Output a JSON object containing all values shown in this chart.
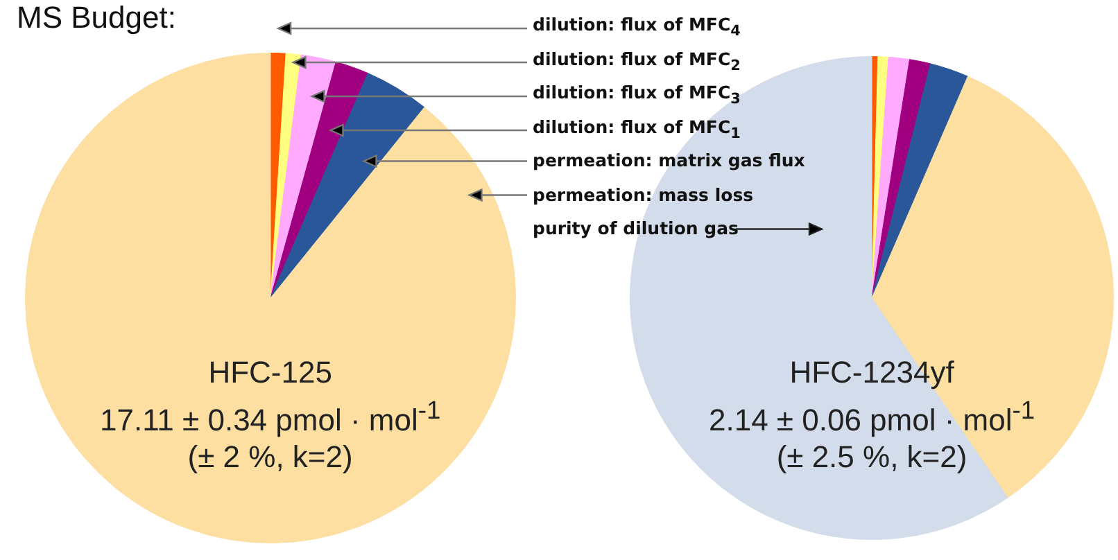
{
  "chart_data": [
    {
      "type": "pie",
      "title": "MS Budget:",
      "categories": [
        "dilution: flux of MFC$_{4}$",
        "dilution: flux of MFC$_{2}$",
        "dilution: flux of MFC$_{3}$",
        "dilution: flux of MFC$_{1}$",
        "permeation: matrix gas flux",
        "permeation: mass loss",
        "purity of dilution gas"
      ],
      "values": [
        1.0,
        1.0,
        2.3,
        2.2,
        4.3,
        89.2,
        0
      ],
      "colors": [
        "#ff5a00",
        "#ffff80",
        "#ffaaff",
        "#a0007f",
        "#2a579a",
        "#fddfa2",
        "#d3dcea"
      ],
      "annotations": [
        "HFC-125",
        "17.11 ± 0.34 pmol · mol$^{-1}$",
        "(± 2 %, k=2)"
      ]
    },
    {
      "type": "pie",
      "categories": [
        null,
        null,
        null,
        null,
        null,
        null,
        null
      ],
      "values": [
        0.4,
        0.7,
        1.4,
        1.4,
        2.6,
        34.0,
        59.5
      ],
      "colors": [
        "#ff5a00",
        "#ffff80",
        "#ffaaff",
        "#a0007f",
        "#2a579a",
        "#fddfa2",
        "#d3dcea"
      ],
      "annotations": [
        "HFC-1234yf",
        "2.14 ± 0.06 pmol · mol$^{-1}$",
        "(± 2.5 %, k=2)"
      ]
    }
  ]
}
